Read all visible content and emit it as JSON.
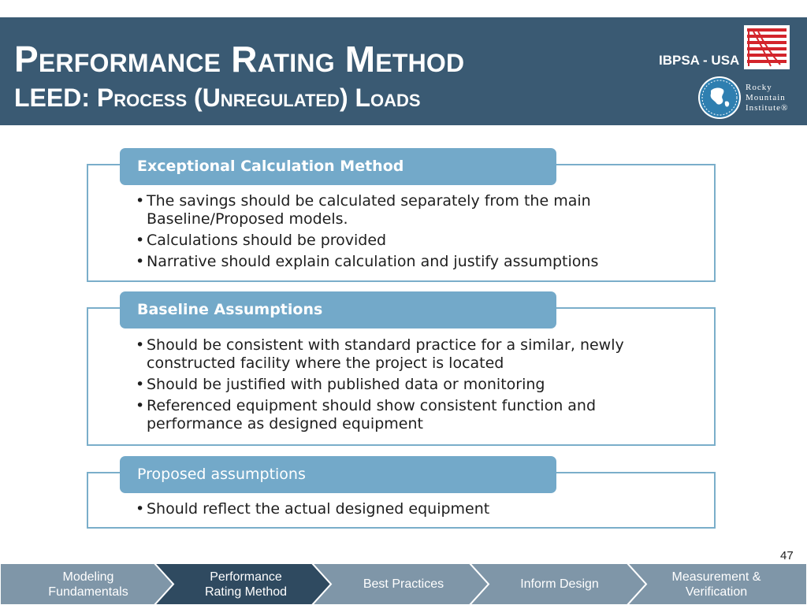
{
  "header": {
    "title": "Performance Rating Method",
    "subtitle": "LEED: Process (Unregulated) Loads",
    "ibpsa_label": "IBPSA - USA",
    "rmi_logo_text": [
      "Rocky",
      "Mountain",
      "Institute®"
    ],
    "colors": {
      "background": "#3a5a73",
      "text": "#ffffff",
      "ibpsa_red": "#d3242b"
    },
    "icons": [
      "ibpsa-logo-icon",
      "rmi-globe-icon"
    ]
  },
  "sections": [
    {
      "heading": "Exceptional Calculation Method",
      "bullets": [
        "The savings should be calculated separately from the main Baseline/Proposed models.",
        "Calculations should be provided",
        "Narrative should explain calculation and justify assumptions"
      ]
    },
    {
      "heading": "Baseline Assumptions",
      "bullets": [
        "Should be consistent with standard practice for a similar, newly constructed facility where the project is located",
        "Should be justified with published data or monitoring",
        "Referenced equipment should show consistent function and performance as designed equipment"
      ]
    },
    {
      "heading": "Proposed assumptions",
      "bullets": [
        "Should reflect the actual designed equipment"
      ]
    }
  ],
  "section_colors": {
    "tab": "#73a9c9",
    "border": "#7aaeca"
  },
  "page_number": "47",
  "nav": {
    "active_index": 1,
    "colors": {
      "inactive": "#7f96a8",
      "active": "#2f4a60"
    },
    "items": [
      {
        "label": "Modeling\nFundamentals"
      },
      {
        "label": "Performance\nRating Method"
      },
      {
        "label": "Best Practices"
      },
      {
        "label": "Inform Design"
      },
      {
        "label": "Measurement &\nVerification"
      }
    ]
  }
}
